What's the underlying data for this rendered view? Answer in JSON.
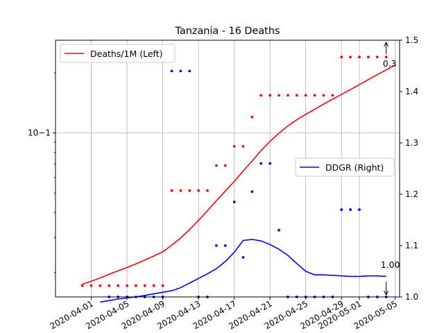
{
  "chart_data": {
    "type": "line",
    "title": "Tanzania - 16 Deaths",
    "x_ticks": [
      "2020-04-01",
      "2020-04-05",
      "2020-04-09",
      "2020-04-13",
      "2020-04-17",
      "2020-04-21",
      "2020-04-25",
      "2020-04-29",
      "2020-05-01",
      "2020-05-05"
    ],
    "left_axis": {
      "scale": "log",
      "range": [
        0.0151,
        0.2915
      ],
      "tick_labels": [
        "10−1"
      ]
    },
    "right_axis": {
      "scale": "linear",
      "range": [
        1.0,
        1.5
      ],
      "tick_labels": [
        "1.0",
        "1.1",
        "1.2",
        "1.3",
        "1.4",
        "1.5"
      ]
    },
    "grid": true,
    "legend": {
      "left": {
        "label": "Deaths/1M (Left)",
        "placement": "top-left",
        "color": "#ff0000"
      },
      "right": {
        "label": "DDGR (Right)",
        "placement": "center-right",
        "color": "#0000ff"
      }
    },
    "annotations": [
      {
        "text": "0.3",
        "x": "2020-05-04",
        "y": 0.2915,
        "axis": "left"
      },
      {
        "text": "1.00",
        "x": "2020-05-04",
        "y": 1.0,
        "axis": "right"
      }
    ],
    "series": [
      {
        "name": "Deaths/1M (Left)",
        "axis": "left",
        "style": "line",
        "color": "#ff0000",
        "points": [
          [
            "2020-03-31",
            0.0175
          ],
          [
            "2020-04-01",
            0.0181
          ],
          [
            "2020-04-02",
            0.0188
          ],
          [
            "2020-04-03",
            0.0196
          ],
          [
            "2020-04-04",
            0.0204
          ],
          [
            "2020-04-05",
            0.0212
          ],
          [
            "2020-04-06",
            0.0221
          ],
          [
            "2020-04-07",
            0.0231
          ],
          [
            "2020-04-08",
            0.0242
          ],
          [
            "2020-04-09",
            0.0254
          ],
          [
            "2020-04-10",
            0.0274
          ],
          [
            "2020-04-11",
            0.0298
          ],
          [
            "2020-04-12",
            0.0328
          ],
          [
            "2020-04-13",
            0.0365
          ],
          [
            "2020-04-14",
            0.0408
          ],
          [
            "2020-04-15",
            0.0458
          ],
          [
            "2020-04-16",
            0.0512
          ],
          [
            "2020-04-17",
            0.0572
          ],
          [
            "2020-04-18",
            0.0645
          ],
          [
            "2020-04-19",
            0.0724
          ],
          [
            "2020-04-20",
            0.0816
          ],
          [
            "2020-04-21",
            0.0908
          ],
          [
            "2020-04-22",
            0.0998
          ],
          [
            "2020-04-23",
            0.1085
          ],
          [
            "2020-04-24",
            0.1165
          ],
          [
            "2020-04-25",
            0.124
          ],
          [
            "2020-04-26",
            0.1315
          ],
          [
            "2020-04-27",
            0.1395
          ],
          [
            "2020-04-28",
            0.1475
          ],
          [
            "2020-04-29",
            0.156
          ],
          [
            "2020-04-30",
            0.165
          ],
          [
            "2020-05-01",
            0.1745
          ],
          [
            "2020-05-02",
            0.185
          ],
          [
            "2020-05-03",
            0.196
          ],
          [
            "2020-05-04",
            0.207
          ],
          [
            "2020-05-05",
            0.219
          ]
        ]
      },
      {
        "name": "Deaths/1M (Left) daily",
        "axis": "left",
        "style": "dots",
        "color": "#ff0000",
        "points": [
          [
            "2020-03-31",
            0.0172
          ],
          [
            "2020-04-01",
            0.0172
          ],
          [
            "2020-04-02",
            0.0172
          ],
          [
            "2020-04-03",
            0.0172
          ],
          [
            "2020-04-04",
            0.0172
          ],
          [
            "2020-04-05",
            0.0172
          ],
          [
            "2020-04-06",
            0.0172
          ],
          [
            "2020-04-07",
            0.0172
          ],
          [
            "2020-04-08",
            0.0172
          ],
          [
            "2020-04-09",
            0.0172
          ],
          [
            "2020-04-10",
            0.0515
          ],
          [
            "2020-04-11",
            0.0515
          ],
          [
            "2020-04-12",
            0.0515
          ],
          [
            "2020-04-13",
            0.0515
          ],
          [
            "2020-04-14",
            0.0515
          ],
          [
            "2020-04-15",
            0.0687
          ],
          [
            "2020-04-16",
            0.0687
          ],
          [
            "2020-04-17",
            0.0858
          ],
          [
            "2020-04-18",
            0.0858
          ],
          [
            "2020-04-19",
            0.1201
          ],
          [
            "2020-04-20",
            0.1544
          ],
          [
            "2020-04-21",
            0.1544
          ],
          [
            "2020-04-22",
            0.1544
          ],
          [
            "2020-04-23",
            0.1544
          ],
          [
            "2020-04-24",
            0.1544
          ],
          [
            "2020-04-25",
            0.1544
          ],
          [
            "2020-04-26",
            0.1544
          ],
          [
            "2020-04-27",
            0.1544
          ],
          [
            "2020-04-28",
            0.1544
          ],
          [
            "2020-04-29",
            0.2402
          ],
          [
            "2020-04-30",
            0.2402
          ],
          [
            "2020-05-01",
            0.2402
          ],
          [
            "2020-05-02",
            0.2402
          ],
          [
            "2020-05-03",
            0.2402
          ],
          [
            "2020-05-04",
            0.2402
          ]
        ]
      },
      {
        "name": "DDGR (Right)",
        "axis": "right",
        "style": "line",
        "color": "#0000ff",
        "points": [
          [
            "2020-04-02",
            0.99
          ],
          [
            "2020-04-03",
            0.993
          ],
          [
            "2020-04-04",
            0.996
          ],
          [
            "2020-04-05",
            0.998
          ],
          [
            "2020-04-06",
            1.0
          ],
          [
            "2020-04-07",
            1.003
          ],
          [
            "2020-04-08",
            1.006
          ],
          [
            "2020-04-09",
            1.009
          ],
          [
            "2020-04-10",
            1.012
          ],
          [
            "2020-04-11",
            1.018
          ],
          [
            "2020-04-12",
            1.027
          ],
          [
            "2020-04-13",
            1.036
          ],
          [
            "2020-04-14",
            1.045
          ],
          [
            "2020-04-15",
            1.055
          ],
          [
            "2020-04-16",
            1.069
          ],
          [
            "2020-04-17",
            1.087
          ],
          [
            "2020-04-18",
            1.11
          ],
          [
            "2020-04-19",
            1.112
          ],
          [
            "2020-04-20",
            1.109
          ],
          [
            "2020-04-21",
            1.102
          ],
          [
            "2020-04-22",
            1.093
          ],
          [
            "2020-04-23",
            1.081
          ],
          [
            "2020-04-24",
            1.065
          ],
          [
            "2020-04-25",
            1.05
          ],
          [
            "2020-04-26",
            1.043
          ],
          [
            "2020-04-27",
            1.043
          ],
          [
            "2020-04-28",
            1.042
          ],
          [
            "2020-04-29",
            1.041
          ],
          [
            "2020-04-30",
            1.04
          ],
          [
            "2020-05-01",
            1.04
          ],
          [
            "2020-05-02",
            1.041
          ],
          [
            "2020-05-03",
            1.041
          ],
          [
            "2020-05-04",
            1.04
          ]
        ]
      },
      {
        "name": "DDGR (Right) daily",
        "axis": "right",
        "style": "dots",
        "color": "#0000ff",
        "points": [
          [
            "2020-04-03",
            1.0
          ],
          [
            "2020-04-04",
            1.0
          ],
          [
            "2020-04-05",
            1.0
          ],
          [
            "2020-04-06",
            1.0
          ],
          [
            "2020-04-07",
            1.0
          ],
          [
            "2020-04-08",
            1.0
          ],
          [
            "2020-04-09",
            1.0
          ],
          [
            "2020-04-10",
            1.44
          ],
          [
            "2020-04-11",
            1.44
          ],
          [
            "2020-04-12",
            1.44
          ],
          [
            "2020-04-13",
            1.0
          ],
          [
            "2020-04-14",
            1.0
          ],
          [
            "2020-04-15",
            1.1
          ],
          [
            "2020-04-16",
            1.1
          ],
          [
            "2020-04-17",
            1.185
          ],
          [
            "2020-04-18",
            1.077
          ],
          [
            "2020-04-19",
            1.205
          ],
          [
            "2020-04-20",
            1.26
          ],
          [
            "2020-04-21",
            1.26
          ],
          [
            "2020-04-22",
            1.13
          ],
          [
            "2020-04-23",
            1.0
          ],
          [
            "2020-04-24",
            1.0
          ],
          [
            "2020-04-25",
            1.0
          ],
          [
            "2020-04-26",
            1.0
          ],
          [
            "2020-04-27",
            1.0
          ],
          [
            "2020-04-28",
            1.0
          ],
          [
            "2020-04-29",
            1.17
          ],
          [
            "2020-04-30",
            1.17
          ],
          [
            "2020-05-01",
            1.17
          ],
          [
            "2020-05-02",
            1.0
          ],
          [
            "2020-05-03",
            1.0
          ],
          [
            "2020-05-04",
            1.0
          ]
        ]
      }
    ]
  }
}
